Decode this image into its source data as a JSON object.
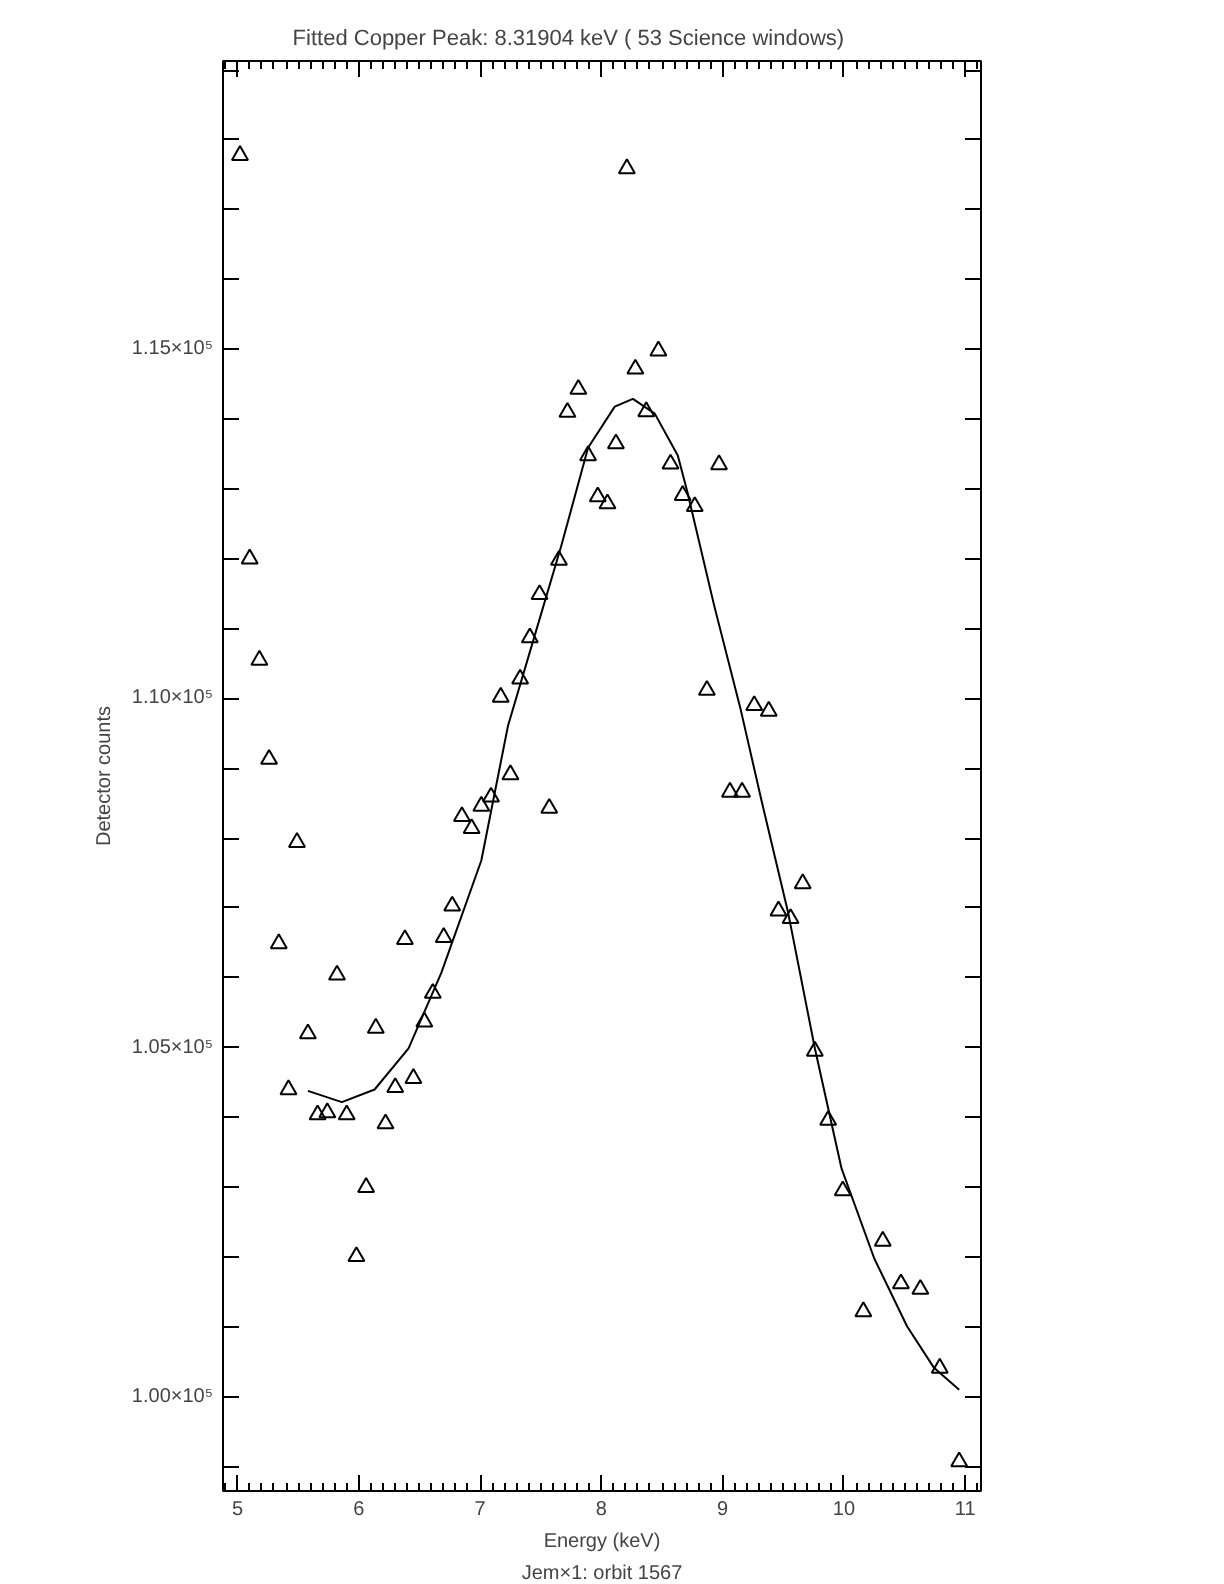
{
  "chart_data": {
    "type": "scatter",
    "title": "Fitted Copper Peak:       8.31904 keV (      53 Science windows)",
    "xlabel": "Energy (keV)",
    "ylabel": "Detector counts",
    "annotations": [
      "Jem×1: orbit 1567"
    ],
    "xlim": [
      4.88,
      11.13
    ],
    "ylim": [
      98650,
      119130
    ],
    "xticks": [
      5,
      6,
      7,
      8,
      9,
      10,
      11
    ],
    "yticks": [
      {
        "value": 99000,
        "label": null
      },
      {
        "value": 100000,
        "label": "1.00×10⁵"
      },
      {
        "value": 101000,
        "label": null
      },
      {
        "value": 102000,
        "label": null
      },
      {
        "value": 103000,
        "label": null
      },
      {
        "value": 104000,
        "label": null
      },
      {
        "value": 105000,
        "label": "1.05×10⁵"
      },
      {
        "value": 106000,
        "label": null
      },
      {
        "value": 107000,
        "label": null
      },
      {
        "value": 108000,
        "label": null
      },
      {
        "value": 109000,
        "label": null
      },
      {
        "value": 110000,
        "label": "1.10×10⁵"
      },
      {
        "value": 111000,
        "label": null
      },
      {
        "value": 112000,
        "label": null
      },
      {
        "value": 113000,
        "label": null
      },
      {
        "value": 114000,
        "label": null
      },
      {
        "value": 115000,
        "label": "1.15×10⁵"
      },
      {
        "value": 116000,
        "label": null
      },
      {
        "value": 117000,
        "label": null
      },
      {
        "value": 118000,
        "label": null
      },
      {
        "value": 119000,
        "label": null
      }
    ],
    "grid": false,
    "series": [
      {
        "marker": "triangle",
        "color": "#000000",
        "x": [
          5.02,
          5.1,
          5.18,
          5.26,
          5.34,
          5.42,
          5.49,
          5.58,
          5.66,
          5.74,
          5.82,
          5.9,
          5.98,
          6.06,
          6.14,
          6.22,
          6.3,
          6.38,
          6.45,
          6.54,
          6.61,
          6.7,
          6.77,
          6.85,
          6.93,
          7.01,
          7.09,
          7.17,
          7.25,
          7.33,
          7.41,
          7.49,
          7.57,
          7.65,
          7.72,
          7.81,
          7.89,
          7.97,
          8.05,
          8.12,
          8.21,
          8.28,
          8.37,
          8.47,
          8.57,
          8.67,
          8.77,
          8.87,
          8.97,
          9.06,
          9.16,
          9.26,
          9.38,
          9.46,
          9.56,
          9.66,
          9.76,
          9.87,
          9.99,
          10.16,
          10.32,
          10.47,
          10.63,
          10.79,
          10.95
        ],
        "values": [
          117780,
          112000,
          110550,
          109130,
          106490,
          104400,
          107940,
          105200,
          104040,
          104070,
          106040,
          104040,
          102010,
          103000,
          105280,
          103910,
          104430,
          106550,
          104560,
          105370,
          105780,
          106580,
          107030,
          108310,
          108140,
          108460,
          108590,
          110020,
          108910,
          110280,
          110870,
          111490,
          108430,
          111980,
          114100,
          114430,
          113480,
          112890,
          112790,
          113650,
          117590,
          114720,
          114110,
          114980,
          113360,
          112910,
          112750,
          110120,
          113350,
          108660,
          108660,
          109900,
          109820,
          106960,
          106850,
          107350,
          104950,
          103960,
          102950,
          101220,
          102230,
          101620,
          101540,
          100410,
          99070
        ]
      },
      {
        "type": "line",
        "line_style": "solid",
        "color": "#000000",
        "x": [
          5.58,
          5.86,
          6.13,
          6.41,
          6.68,
          7.01,
          7.23,
          7.45,
          7.67,
          7.89,
          8.11,
          8.26,
          8.44,
          8.63,
          8.71,
          8.93,
          9.15,
          9.32,
          9.54,
          9.76,
          9.98,
          10.25,
          10.52,
          10.74,
          10.95
        ],
        "values": [
          104380,
          104220,
          104400,
          104990,
          106070,
          107680,
          109610,
          110900,
          112190,
          113590,
          114180,
          114290,
          114080,
          113480,
          112950,
          111330,
          109830,
          108540,
          106930,
          104990,
          103270,
          101980,
          101010,
          100420,
          100100
        ]
      }
    ]
  }
}
